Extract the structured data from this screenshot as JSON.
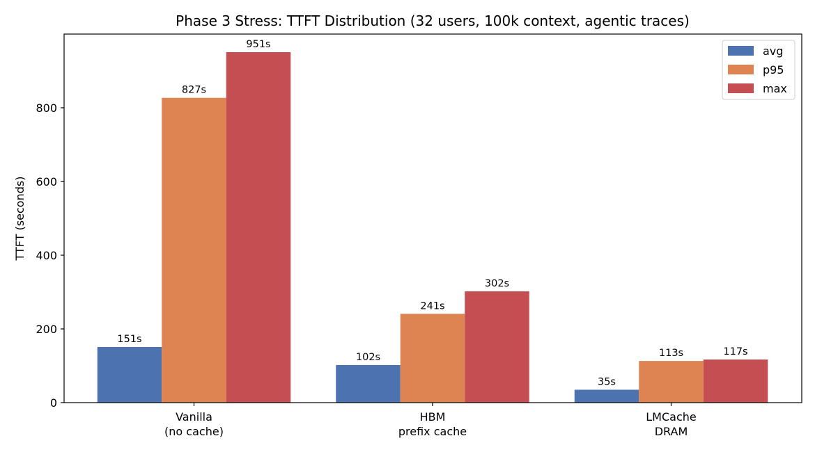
{
  "chart_data": {
    "type": "bar",
    "title": "Phase 3 Stress: TTFT Distribution (32 users, 100k context, agentic traces)",
    "xlabel": "",
    "ylabel": "TTFT (seconds)",
    "ylim": [
      0,
      1000
    ],
    "yticks": [
      0,
      200,
      400,
      600,
      800
    ],
    "categories": [
      [
        "Vanilla",
        "(no cache)"
      ],
      [
        "HBM",
        "prefix cache"
      ],
      [
        "LMCache",
        "DRAM"
      ]
    ],
    "series": [
      {
        "name": "avg",
        "color": "#4c72b0",
        "values": [
          151,
          102,
          35
        ]
      },
      {
        "name": "p95",
        "color": "#dd8452",
        "values": [
          827,
          241,
          113
        ]
      },
      {
        "name": "max",
        "color": "#c44e52",
        "values": [
          951,
          302,
          117
        ]
      }
    ],
    "value_suffix": "s",
    "legend_position": "top-right",
    "grid": false
  }
}
